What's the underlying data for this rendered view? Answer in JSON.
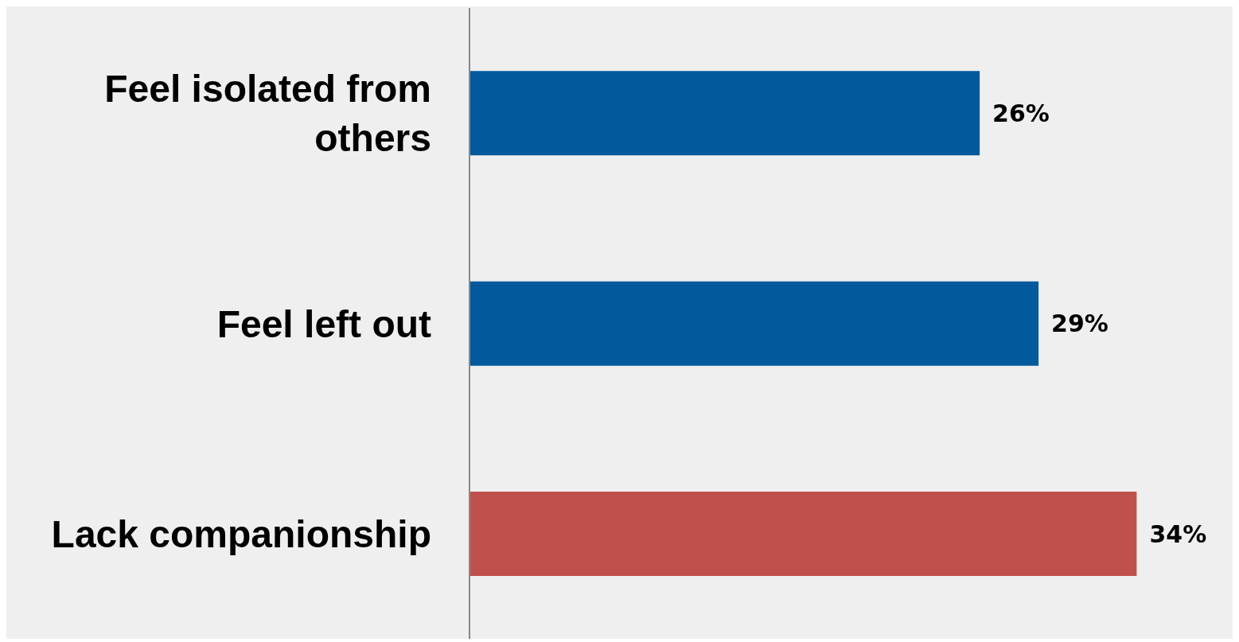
{
  "chart_data": {
    "type": "bar",
    "orientation": "horizontal",
    "categories": [
      "Feel isolated from others",
      "Feel left out",
      "Lack companionship"
    ],
    "values": [
      26,
      29,
      34
    ],
    "colors": [
      "#02599c",
      "#02599c",
      "#c0504d"
    ],
    "data_labels": true,
    "value_labels": [
      "26%",
      "29%",
      "34%"
    ],
    "grid": false
  }
}
